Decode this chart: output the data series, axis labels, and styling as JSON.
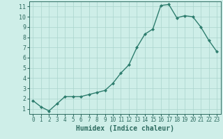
{
  "x": [
    0,
    1,
    2,
    3,
    4,
    5,
    6,
    7,
    8,
    9,
    10,
    11,
    12,
    13,
    14,
    15,
    16,
    17,
    18,
    19,
    20,
    21,
    22,
    23
  ],
  "y": [
    1.8,
    1.2,
    0.8,
    1.5,
    2.2,
    2.2,
    2.2,
    2.4,
    2.6,
    2.8,
    3.5,
    4.5,
    5.3,
    7.0,
    8.3,
    8.8,
    11.1,
    11.2,
    9.9,
    10.1,
    10.0,
    9.0,
    7.7,
    6.6
  ],
  "line_color": "#2e7d6e",
  "marker": "D",
  "marker_size": 2.0,
  "bg_color": "#ceeee8",
  "grid_color": "#aad4cc",
  "xlabel": "Humidex (Indice chaleur)",
  "xlim": [
    -0.5,
    23.5
  ],
  "ylim": [
    0.5,
    11.5
  ],
  "yticks": [
    1,
    2,
    3,
    4,
    5,
    6,
    7,
    8,
    9,
    10,
    11
  ],
  "xticks": [
    0,
    1,
    2,
    3,
    4,
    5,
    6,
    7,
    8,
    9,
    10,
    11,
    12,
    13,
    14,
    15,
    16,
    17,
    18,
    19,
    20,
    21,
    22,
    23
  ],
  "tick_color": "#2e6b60",
  "xlabel_fontsize": 7.0,
  "ytick_fontsize": 6.0,
  "xtick_fontsize": 5.5,
  "line_width": 1.0
}
